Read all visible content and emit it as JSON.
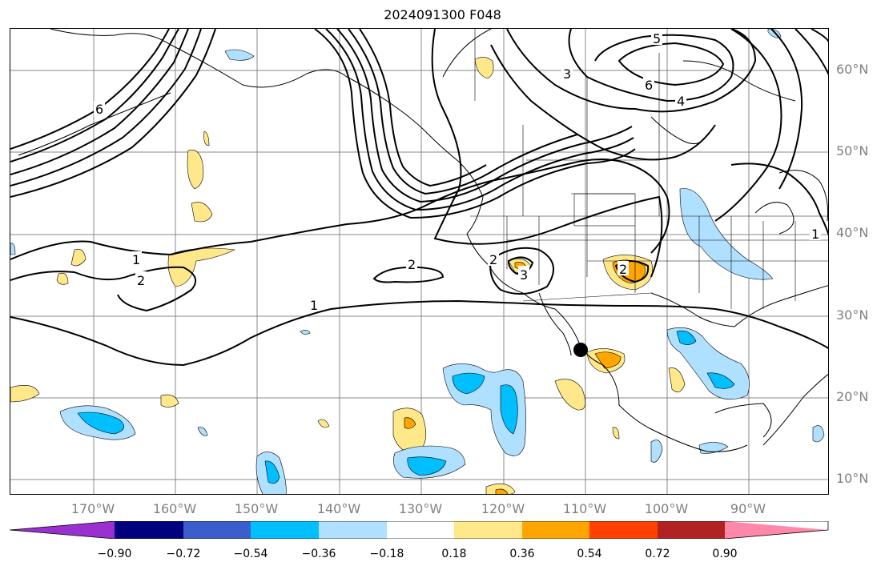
{
  "title": "2024091300 F048",
  "latitude_labels": [
    "60°N",
    "50°N",
    "40°N",
    "30°N",
    "20°N",
    "10°N"
  ],
  "longitude_labels": [
    "170°W",
    "160°W",
    "150°W",
    "140°W",
    "130°W",
    "120°W",
    "110°W",
    "100°W",
    "90°W"
  ],
  "colorbar": {
    "ticks": [
      "−0.90",
      "−0.72",
      "−0.54",
      "−0.36",
      "−0.18",
      "0.18",
      "0.36",
      "0.54",
      "0.72",
      "0.90"
    ],
    "colors": [
      "#9b30d0",
      "#000080",
      "#3a5fcd",
      "#00bfff",
      "#b0e0ff",
      "#ffffff",
      "#ffe88a",
      "#ffa500",
      "#ff4000",
      "#b22222",
      "#ff88aa"
    ]
  },
  "contour_labels": [
    "1",
    "1",
    "2",
    "2",
    "2",
    "2",
    "3",
    "3",
    "5",
    "6",
    "6",
    "4",
    "1"
  ]
}
